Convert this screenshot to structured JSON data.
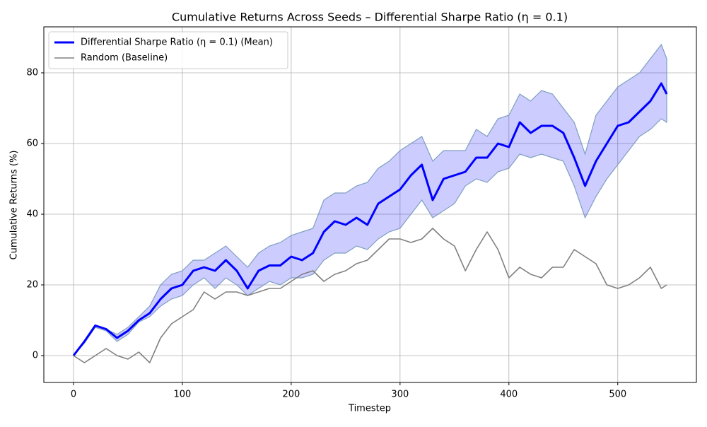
{
  "chart_data": {
    "type": "line",
    "title": "Cumulative Returns Across Seeds – Differential Sharpe Ratio (η = 0.1)",
    "xlabel": "Timestep",
    "ylabel": "Cumulative Returns (%)",
    "x": [
      0,
      10,
      20,
      30,
      40,
      50,
      60,
      70,
      80,
      90,
      100,
      110,
      120,
      130,
      140,
      150,
      160,
      170,
      180,
      190,
      200,
      210,
      220,
      230,
      240,
      250,
      260,
      270,
      280,
      290,
      300,
      310,
      320,
      330,
      340,
      350,
      360,
      370,
      380,
      390,
      400,
      410,
      420,
      430,
      440,
      450,
      460,
      470,
      480,
      490,
      500,
      510,
      520,
      530,
      540,
      545
    ],
    "series": [
      {
        "name": "Differential Sharpe Ratio (η = 0.1) (Mean)",
        "color": "#0000ff",
        "width": 3,
        "values": [
          0,
          4,
          8.5,
          7.5,
          5,
          7,
          10,
          12,
          16,
          19,
          20,
          24,
          25,
          24,
          27,
          24,
          19,
          24,
          25.5,
          25.5,
          28,
          27,
          29,
          35,
          38,
          37,
          39,
          37,
          43,
          45,
          47,
          51,
          54,
          44,
          50,
          51,
          52,
          56,
          56,
          60,
          59,
          66,
          63,
          65,
          65,
          63,
          56,
          48,
          55,
          60,
          65,
          66,
          69,
          72,
          77,
          74
        ]
      },
      {
        "name": "Random (Baseline)",
        "color": "#808080",
        "width": 1.6,
        "values": [
          0,
          -2,
          0,
          2,
          0,
          -1,
          1,
          -2,
          5,
          9,
          11,
          13,
          18,
          16,
          18,
          18,
          17,
          18,
          19,
          19,
          21,
          23,
          24,
          21,
          23,
          24,
          26,
          27,
          30,
          33,
          33,
          32,
          33,
          36,
          33,
          31,
          24,
          30,
          35,
          30,
          22,
          25,
          23,
          22,
          25,
          25,
          30,
          28,
          26,
          20,
          19,
          20,
          22,
          25,
          19,
          20
        ]
      }
    ],
    "band": {
      "color": "#0000ff",
      "edge_color": "#7f9fbf",
      "upper": [
        0,
        4,
        8.5,
        7.5,
        6,
        8,
        11,
        14,
        20,
        23,
        24,
        27,
        27,
        29,
        31,
        28,
        25,
        29,
        31,
        32,
        34,
        35,
        36,
        44,
        46,
        46,
        48,
        49,
        53,
        55,
        58,
        60,
        62,
        55,
        58,
        58,
        58,
        64,
        62,
        67,
        68,
        74,
        72,
        75,
        74,
        70,
        66,
        57,
        68,
        72,
        76,
        78,
        80,
        84,
        88,
        84
      ],
      "lower": [
        0,
        3.5,
        8,
        7,
        4,
        6,
        9.5,
        11,
        14,
        16,
        17,
        20,
        22,
        19,
        22,
        20,
        17,
        19,
        21,
        20,
        22,
        22,
        23,
        27,
        29,
        29,
        31,
        30,
        33,
        35,
        36,
        40,
        44,
        39,
        41,
        43,
        48,
        50,
        49,
        52,
        53,
        57,
        56,
        57,
        56,
        55,
        48,
        39,
        45,
        50,
        54,
        58,
        62,
        64,
        67,
        66
      ]
    },
    "xlim": [
      -27.25,
      572.25
    ],
    "ylim": [
      -7.6,
      93
    ],
    "xticks": [
      0,
      100,
      200,
      300,
      400,
      500
    ],
    "yticks": [
      0,
      20,
      40,
      60,
      80
    ],
    "grid": true,
    "legend": "upper left"
  }
}
